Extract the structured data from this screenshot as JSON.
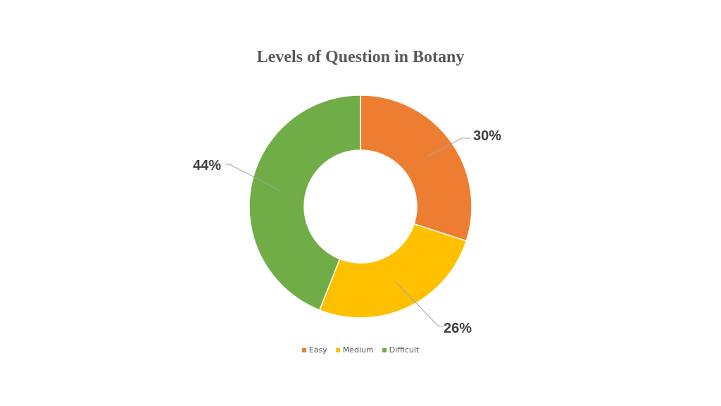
{
  "chart_data": {
    "type": "pie",
    "variant": "donut",
    "title": "Levels of Question in Botany",
    "categories": [
      "Easy",
      "Medium",
      "Difficult"
    ],
    "values": [
      30,
      26,
      44
    ],
    "labels": [
      "30%",
      "26%",
      "44%"
    ],
    "colors": [
      "#ED7D31",
      "#FFC000",
      "#70AD47"
    ],
    "legend_position": "bottom"
  },
  "legend": [
    {
      "label": "Easy",
      "color": "#ED7D31"
    },
    {
      "label": "Medium",
      "color": "#FFC000"
    },
    {
      "label": "Difficult",
      "color": "#70AD47"
    }
  ]
}
